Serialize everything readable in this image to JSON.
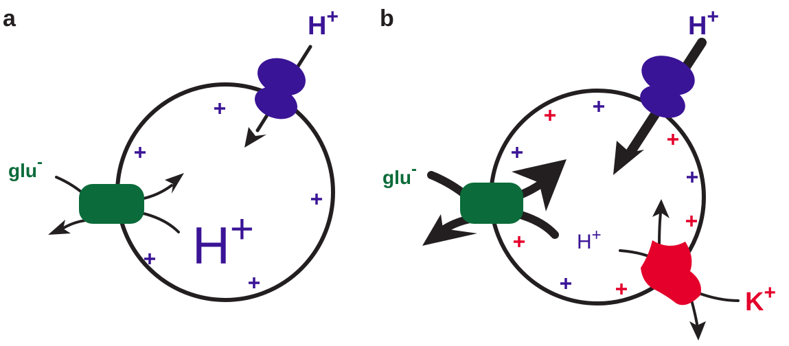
{
  "panels": [
    {
      "label": "a",
      "proton_top": {
        "base": "H",
        "sup": "+"
      },
      "proton_inside": {
        "base": "H",
        "sup": "+"
      },
      "glutamate": {
        "base": "glu",
        "sup": "-"
      }
    },
    {
      "label": "b",
      "proton_top": {
        "base": "H",
        "sup": "+"
      },
      "proton_inside": {
        "base": "H",
        "sup": "+"
      },
      "glutamate": {
        "base": "glu",
        "sup": "-"
      },
      "potassium": {
        "base": "K",
        "sup": "+"
      }
    }
  ]
}
